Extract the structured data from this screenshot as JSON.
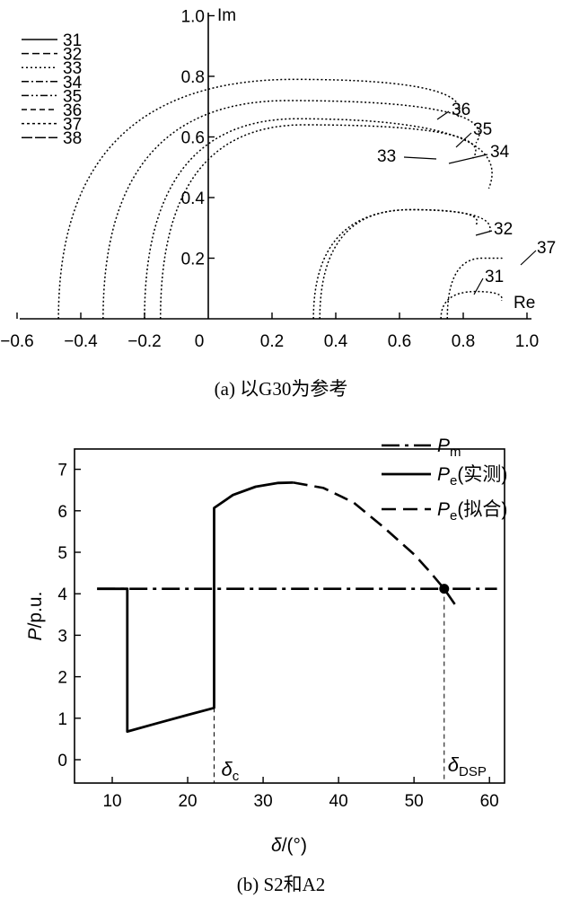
{
  "chart_data": [
    {
      "type": "line",
      "title": "",
      "caption": "(a) 以G30为参考",
      "xlabel": "Re",
      "ylabel": "Im",
      "xlim": [
        -0.6,
        1.0
      ],
      "ylim": [
        0,
        1.0
      ],
      "x_ticks": [
        "−0.6",
        "−0.4",
        "−0.2",
        "0",
        "0.2",
        "0.4",
        "0.6",
        "0.8",
        "1.0"
      ],
      "y_ticks": [
        "1.0",
        "0.8",
        "0.6",
        "0.4",
        "0.2"
      ],
      "legend": {
        "position": "top-left",
        "entries": [
          "31",
          "32",
          "33",
          "34",
          "35",
          "36",
          "37",
          "38"
        ]
      },
      "series": [
        {
          "name": "31",
          "start": [
            0.73,
            0
          ],
          "end": [
            0.92,
            0.06
          ],
          "peak_im": 0.09
        },
        {
          "name": "32",
          "start": [
            0.35,
            0
          ],
          "end": [
            0.88,
            0.28
          ],
          "peak_im": 0.36
        },
        {
          "name": "33",
          "start": [
            -0.15,
            0
          ],
          "end": [
            0.83,
            0.53
          ],
          "peak_im": 0.64
        },
        {
          "name": "34",
          "start": [
            -0.2,
            0
          ],
          "end": [
            0.88,
            0.43
          ],
          "peak_im": 0.66
        },
        {
          "name": "35",
          "start": [
            -0.33,
            0
          ],
          "end": [
            0.84,
            0.58
          ],
          "peak_im": 0.72
        },
        {
          "name": "36",
          "start": [
            -0.47,
            0
          ],
          "end": [
            0.78,
            0.66
          ],
          "peak_im": 0.79
        },
        {
          "name": "37",
          "start": [
            0.75,
            0
          ],
          "end": [
            0.92,
            0.2
          ],
          "peak_im": 0.2
        },
        {
          "name": "38",
          "start": [
            0.33,
            0
          ],
          "end": [
            0.84,
            0.31
          ],
          "peak_im": 0.36
        }
      ],
      "annotations": [
        "36",
        "35",
        "33",
        "34",
        "32",
        "37",
        "31"
      ]
    },
    {
      "type": "line",
      "title": "",
      "caption": "(b) S2和A2",
      "xlabel": "δ/(°)",
      "ylabel": "P/p.u.",
      "xlim": [
        5,
        62
      ],
      "ylim": [
        -0.5,
        7.3
      ],
      "x_ticks": [
        "10",
        "20",
        "30",
        "40",
        "50",
        "60"
      ],
      "y_ticks": [
        "7",
        "6",
        "5",
        "4",
        "3",
        "2",
        "1",
        "0"
      ],
      "legend": {
        "position": "top-right",
        "entries": [
          "Pm",
          "Pe(实测)",
          "Pe(拟合)"
        ]
      },
      "series": [
        {
          "name": "Pm",
          "style": "dash-dot",
          "x": [
            8,
            61
          ],
          "y": [
            4.12,
            4.12
          ]
        },
        {
          "name": "Pe(实测)",
          "style": "solid",
          "x": [
            8,
            12,
            12,
            16,
            20,
            23.5,
            23.5,
            23.5,
            26,
            29,
            32,
            34
          ],
          "y": [
            4.12,
            4.12,
            0.68,
            0.88,
            1.08,
            1.25,
            1.25,
            6.07,
            6.38,
            6.58,
            6.67,
            6.68
          ]
        },
        {
          "name": "Pe(拟合)",
          "style": "dashed",
          "x": [
            34,
            38,
            42,
            46,
            50,
            52,
            54,
            55.5
          ],
          "y": [
            6.68,
            6.55,
            6.2,
            5.6,
            4.95,
            4.55,
            4.12,
            3.72
          ]
        }
      ],
      "markers": [
        {
          "label": "δc",
          "x": 23.5
        },
        {
          "label": "δDSP",
          "x": 54,
          "y": 4.12
        }
      ]
    }
  ],
  "labels": {
    "a_im": "Im",
    "a_re": "Re",
    "b_ylabel_main": "P",
    "b_ylabel_unit": "/p.u.",
    "b_xlabel_main": "δ",
    "b_xlabel_unit": "/(°)",
    "delta": "δ",
    "delta_c_sub": "c",
    "delta_dsp_sub": "DSP",
    "p_symbol": "P",
    "pm_sub": "m",
    "pe_sub": "e",
    "pe_measured_suffix": "(实测)",
    "pe_fitted_suffix": "(拟合)"
  }
}
